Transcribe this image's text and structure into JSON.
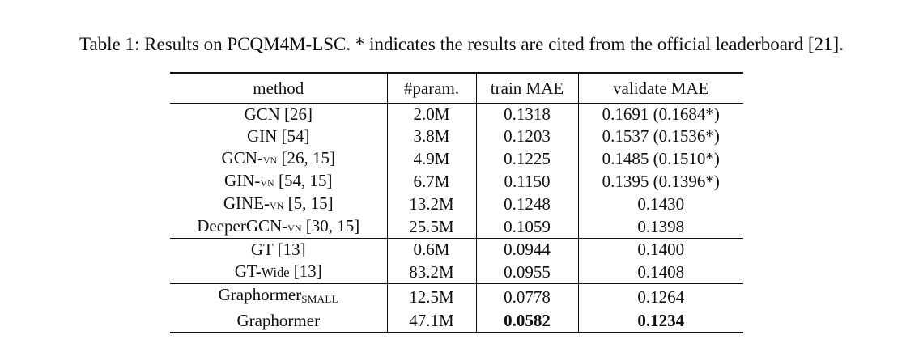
{
  "caption": "Table 1: Results on PCQM4M-LSC. * indicates the results are cited from the official leaderboard [21].",
  "table": {
    "headers": [
      "method",
      "#param.",
      "train MAE",
      "validate MAE"
    ],
    "rows": [
      {
        "method": "GCN [26]",
        "params": "2.0M",
        "train": "0.1318",
        "validate": "0.1691 (0.1684*)"
      },
      {
        "method_base": "GIN",
        "method_rest": " [54]",
        "params": "3.8M",
        "train": "0.1203",
        "validate": "0.1537 (0.1536*)"
      },
      {
        "method_base": "GCN-",
        "method_sc": "vn",
        "method_rest": " [26, 15]",
        "params": "4.9M",
        "train": "0.1225",
        "validate": "0.1485 (0.1510*)"
      },
      {
        "method_base": "GIN-",
        "method_sc": "vn",
        "method_rest": " [54, 15]",
        "params": "6.7M",
        "train": "0.1150",
        "validate": "0.1395 (0.1396*)"
      },
      {
        "method_base": "GINE-",
        "method_sc": "vn",
        "method_rest": " [5, 15]",
        "params": "13.2M",
        "train": "0.1248",
        "validate": "0.1430"
      },
      {
        "method_base": "DeeperGCN-",
        "method_sc": "vn",
        "method_rest": " [30, 15]",
        "params": "25.5M",
        "train": "0.1059",
        "validate": "0.1398"
      },
      {
        "method": "GT [13]",
        "params": "0.6M",
        "train": "0.0944",
        "validate": "0.1400"
      },
      {
        "method_base": "GT-",
        "method_sc": "Wide",
        "method_rest": " [13]",
        "params": "83.2M",
        "train": "0.0955",
        "validate": "0.1408"
      },
      {
        "method_base": "Graphormer",
        "method_sub": "SMALL",
        "params": "12.5M",
        "train": "0.0778",
        "validate": "0.1264"
      },
      {
        "method": "Graphormer",
        "params": "47.1M",
        "train": "0.0582",
        "validate": "0.1234"
      }
    ]
  }
}
